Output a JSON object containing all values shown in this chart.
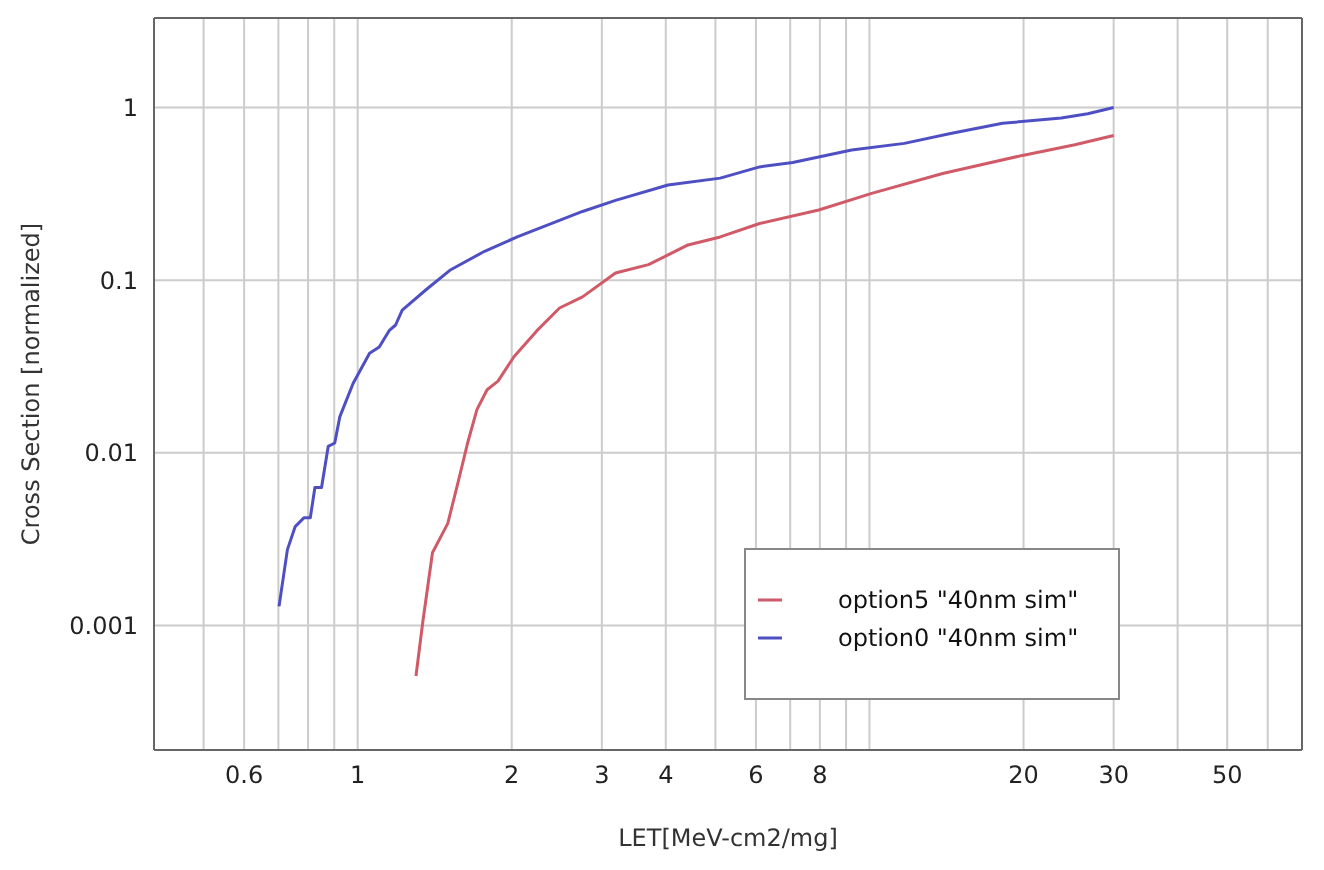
{
  "chart_data": {
    "type": "line",
    "xlabel": "LET[MeV-cm2/mg]",
    "ylabel": "Cross Section [normalized]",
    "log": "xy",
    "grid": true,
    "legend": "bottom right",
    "marker": "none",
    "line_style": "solid",
    "xlim": [
      0.4,
      70
    ],
    "ylim": [
      0.00019,
      3.3
    ],
    "xticks": [
      {
        "value": 0.5,
        "label": null
      },
      0.6,
      {
        "value": 0.7,
        "label": null
      },
      {
        "value": 0.8,
        "label": null
      },
      {
        "value": 0.9,
        "label": null
      },
      1,
      2,
      3,
      4,
      {
        "value": 5,
        "label": null
      },
      6,
      {
        "value": 7,
        "label": null
      },
      8,
      {
        "value": 9,
        "label": null
      },
      {
        "value": 10,
        "label": null
      },
      20,
      30,
      {
        "value": 40,
        "label": null
      },
      50,
      {
        "value": 60,
        "label": null
      }
    ],
    "yticks": [
      0.001,
      0.01,
      0.1,
      1
    ],
    "series": [
      {
        "name": "option5 \"40nm sim\"",
        "color": "#d05a68",
        "x": [
          1.3,
          1.34,
          1.4,
          1.5,
          1.57,
          1.64,
          1.71,
          1.79,
          1.88,
          2.02,
          2.24,
          2.48,
          2.75,
          3.19,
          3.7,
          4.04,
          4.42,
          5.11,
          6.1,
          7.96,
          10.1,
          13.9,
          19.9,
          25.2,
          30
        ],
        "values": [
          0.00051,
          0.00104,
          0.00264,
          0.0039,
          0.0067,
          0.0114,
          0.0178,
          0.0232,
          0.026,
          0.036,
          0.051,
          0.069,
          0.08,
          0.11,
          0.123,
          0.14,
          0.16,
          0.178,
          0.213,
          0.255,
          0.318,
          0.415,
          0.528,
          0.608,
          0.689
        ]
      },
      {
        "name": "option0 \"40nm sim\"",
        "color": "#4f4fc4",
        "x": [
          0.702,
          0.729,
          0.755,
          0.785,
          0.808,
          0.825,
          0.85,
          0.876,
          0.902,
          0.923,
          0.98,
          1.055,
          1.102,
          1.152,
          1.186,
          1.222,
          1.36,
          1.52,
          1.77,
          2.05,
          2.75,
          3.19,
          4.04,
          5.11,
          6.1,
          7.08,
          9.23,
          11.7,
          14.4,
          18.2,
          23.7,
          26.7,
          30
        ],
        "values": [
          0.00129,
          0.00275,
          0.00374,
          0.0042,
          0.0042,
          0.0063,
          0.0063,
          0.0109,
          0.0114,
          0.0162,
          0.0253,
          0.0377,
          0.041,
          0.051,
          0.055,
          0.067,
          0.088,
          0.115,
          0.147,
          0.178,
          0.25,
          0.29,
          0.356,
          0.39,
          0.453,
          0.48,
          0.567,
          0.62,
          0.707,
          0.81,
          0.87,
          0.92,
          1.0
        ]
      }
    ]
  }
}
